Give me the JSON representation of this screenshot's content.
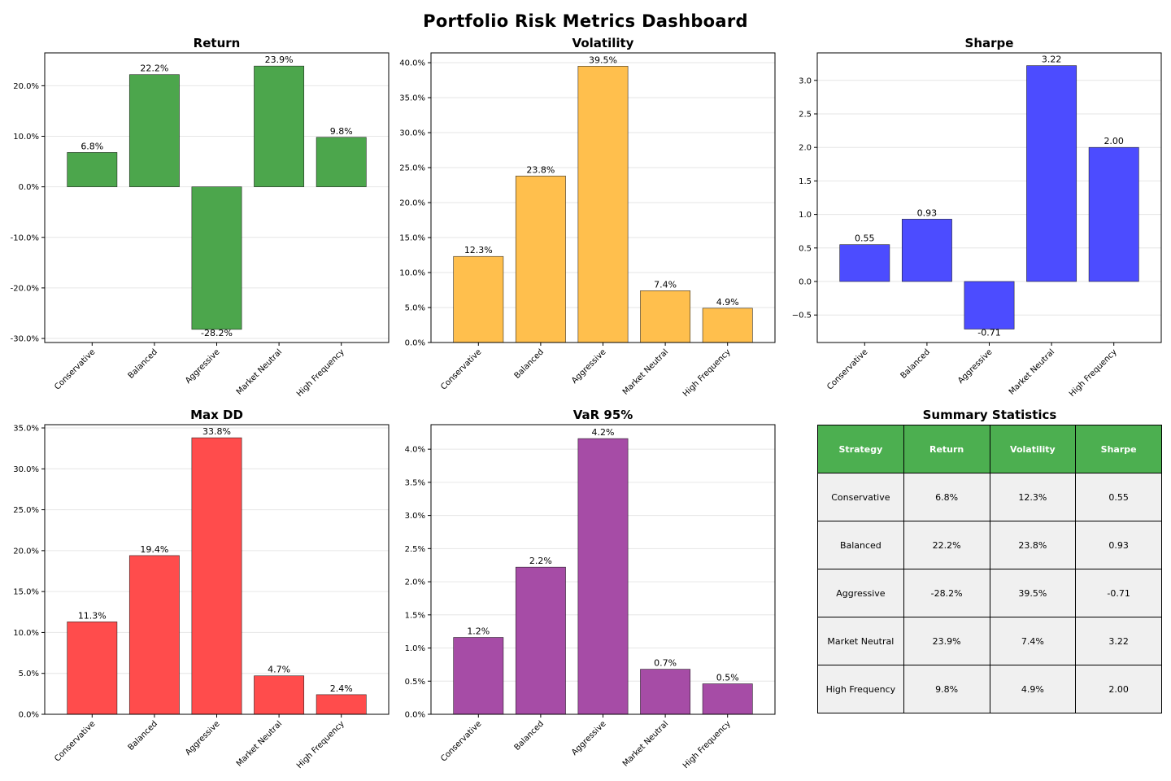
{
  "title": "Portfolio Risk Metrics Dashboard",
  "chart_data": [
    {
      "type": "bar",
      "title": "Return",
      "color": "#4ca64c",
      "format": "pct1",
      "categories": [
        "Conservative",
        "Balanced",
        "Aggressive",
        "Market Neutral",
        "High Frequency"
      ],
      "values": [
        6.8,
        22.2,
        -28.2,
        23.9,
        9.8
      ],
      "labels": [
        "6.8%",
        "22.2%",
        "-28.2%",
        "23.9%",
        "9.8%"
      ],
      "yticks": [
        -30,
        -20,
        -10,
        0,
        10,
        20
      ],
      "ytick_labels": [
        "-30.0%",
        "-20.0%",
        "-10.0%",
        "0.0%",
        "10.0%",
        "20.0%"
      ],
      "ylim": [
        -30.8,
        26.5
      ],
      "grid": true
    },
    {
      "type": "bar",
      "title": "Volatility",
      "color": "#ffbf4d",
      "format": "pct1",
      "categories": [
        "Conservative",
        "Balanced",
        "Aggressive",
        "Market Neutral",
        "High Frequency"
      ],
      "values": [
        12.3,
        23.8,
        39.5,
        7.4,
        4.9
      ],
      "labels": [
        "12.3%",
        "23.8%",
        "39.5%",
        "7.4%",
        "4.9%"
      ],
      "yticks": [
        0,
        5,
        10,
        15,
        20,
        25,
        30,
        35,
        40
      ],
      "ytick_labels": [
        "0.0%",
        "5.0%",
        "10.0%",
        "15.0%",
        "20.0%",
        "25.0%",
        "30.0%",
        "35.0%",
        "40.0%"
      ],
      "ylim": [
        0,
        41.4
      ],
      "grid": true
    },
    {
      "type": "bar",
      "title": "Sharpe",
      "color": "#4c4cff",
      "format": "num2",
      "categories": [
        "Conservative",
        "Balanced",
        "Aggressive",
        "Market Neutral",
        "High Frequency"
      ],
      "values": [
        0.55,
        0.93,
        -0.71,
        3.22,
        2.0
      ],
      "labels": [
        "0.55",
        "0.93",
        "-0.71",
        "3.22",
        "2.00"
      ],
      "yticks": [
        -0.5,
        0,
        0.5,
        1,
        1.5,
        2,
        2.5,
        3
      ],
      "ytick_labels": [
        "−0.5",
        "0.0",
        "0.5",
        "1.0",
        "1.5",
        "2.0",
        "2.5",
        "3.0"
      ],
      "ylim": [
        -0.91,
        3.41
      ],
      "grid": true
    },
    {
      "type": "bar",
      "title": "Max DD",
      "color": "#ff4c4c",
      "format": "pct1",
      "categories": [
        "Conservative",
        "Balanced",
        "Aggressive",
        "Market Neutral",
        "High Frequency"
      ],
      "values": [
        11.3,
        19.4,
        33.8,
        4.7,
        2.4
      ],
      "labels": [
        "11.3%",
        "19.4%",
        "33.8%",
        "4.7%",
        "2.4%"
      ],
      "yticks": [
        0,
        5,
        10,
        15,
        20,
        25,
        30,
        35
      ],
      "ytick_labels": [
        "0.0%",
        "5.0%",
        "10.0%",
        "15.0%",
        "20.0%",
        "25.0%",
        "30.0%",
        "35.0%"
      ],
      "ylim": [
        0,
        35.4
      ],
      "grid": true
    },
    {
      "type": "bar",
      "title": "VaR 95%",
      "color": "#a64ca6",
      "format": "pct1",
      "categories": [
        "Conservative",
        "Balanced",
        "Aggressive",
        "Market Neutral",
        "High Frequency"
      ],
      "values": [
        1.16,
        2.22,
        4.16,
        0.68,
        0.46
      ],
      "labels": [
        "1.2%",
        "2.2%",
        "4.2%",
        "0.7%",
        "0.5%"
      ],
      "yticks": [
        0,
        0.5,
        1,
        1.5,
        2,
        2.5,
        3,
        3.5,
        4
      ],
      "ytick_labels": [
        "0.0%",
        "0.5%",
        "1.0%",
        "1.5%",
        "2.0%",
        "2.5%",
        "3.0%",
        "3.5%",
        "4.0%"
      ],
      "ylim": [
        0,
        4.37
      ],
      "grid": true
    }
  ],
  "summary": {
    "title": "Summary Statistics",
    "header_color": "#4caf50",
    "cell_color": "#f0f0f0",
    "headers": [
      "Strategy",
      "Return",
      "Volatility",
      "Sharpe"
    ],
    "rows": [
      [
        "Conservative",
        "6.8%",
        "12.3%",
        "0.55"
      ],
      [
        "Balanced",
        "22.2%",
        "23.8%",
        "0.93"
      ],
      [
        "Aggressive",
        "-28.2%",
        "39.5%",
        "-0.71"
      ],
      [
        "Market Neutral",
        "23.9%",
        "7.4%",
        "3.22"
      ],
      [
        "High Frequency",
        "9.8%",
        "4.9%",
        "2.00"
      ]
    ]
  }
}
